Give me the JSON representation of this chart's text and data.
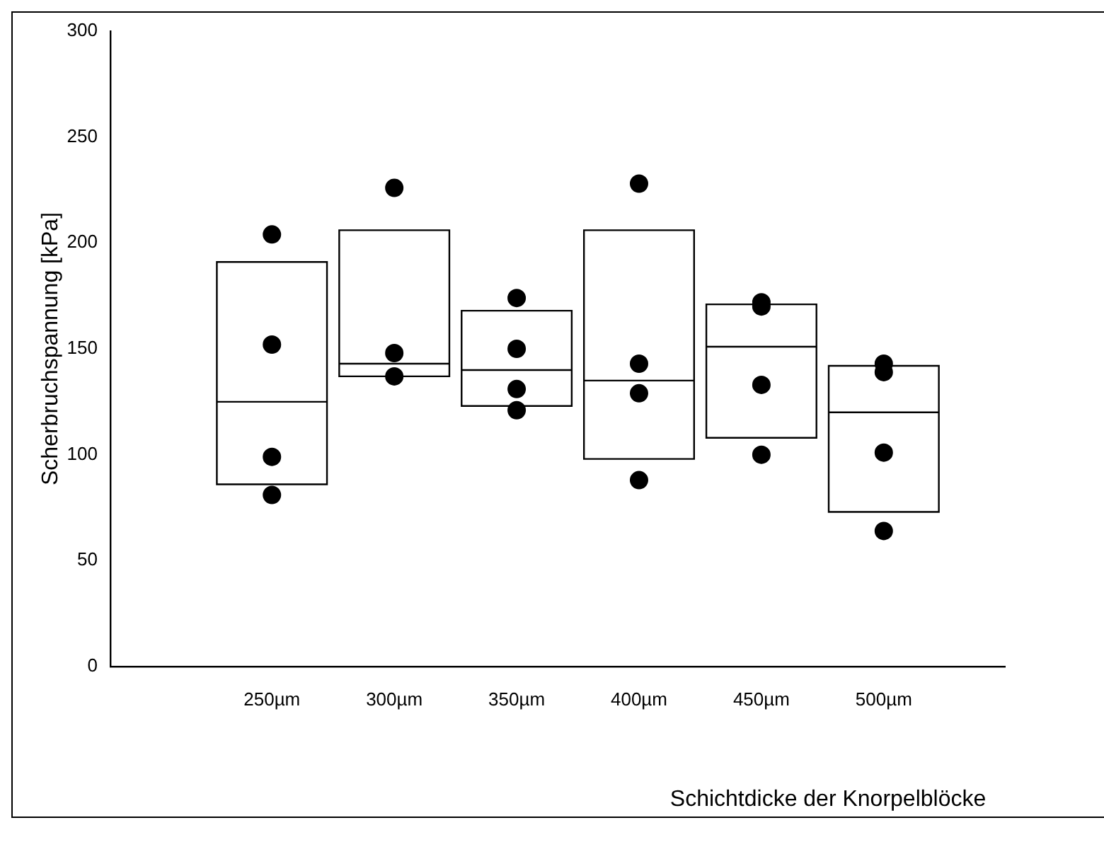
{
  "chart_data": {
    "type": "box",
    "xlabel": "Schichtdicke der Knorpelblöcke",
    "ylabel": "Scherbruchspannung [kPa]",
    "color": "#000000",
    "categories": [
      "250µm",
      "300µm",
      "350µm",
      "400µm",
      "450µm",
      "500µm"
    ],
    "boxes": [
      {
        "low": 86,
        "q1": 86,
        "median": 125,
        "q3": 191,
        "high": 191
      },
      {
        "low": 137,
        "q1": 137,
        "median": 143,
        "q3": 206,
        "high": 206
      },
      {
        "low": 123,
        "q1": 123,
        "median": 140,
        "q3": 168,
        "high": 168
      },
      {
        "low": 98,
        "q1": 98,
        "median": 135,
        "q3": 206,
        "high": 206
      },
      {
        "low": 108,
        "q1": 108,
        "median": 151,
        "q3": 171,
        "high": 171
      },
      {
        "low": 73,
        "q1": 73,
        "median": 120,
        "q3": 142,
        "high": 142
      }
    ],
    "series": [
      {
        "type": "scatter",
        "color": "#000000",
        "x": [
          "250µm",
          "250µm",
          "250µm",
          "250µm",
          "300µm",
          "300µm",
          "300µm",
          "350µm",
          "350µm",
          "350µm",
          "350µm",
          "400µm",
          "400µm",
          "400µm",
          "400µm",
          "450µm",
          "450µm",
          "450µm",
          "450µm",
          "500µm",
          "500µm",
          "500µm",
          "500µm"
        ],
        "values": [
          204,
          152,
          99,
          81,
          226,
          148,
          137,
          174,
          150,
          131,
          121,
          228,
          143,
          129,
          88,
          172,
          170,
          133,
          100,
          143,
          139,
          101,
          64
        ]
      }
    ],
    "marker": "circle",
    "ylim": [
      0,
      300
    ],
    "yticks": [
      0,
      50,
      100,
      150,
      200,
      250,
      300
    ]
  }
}
